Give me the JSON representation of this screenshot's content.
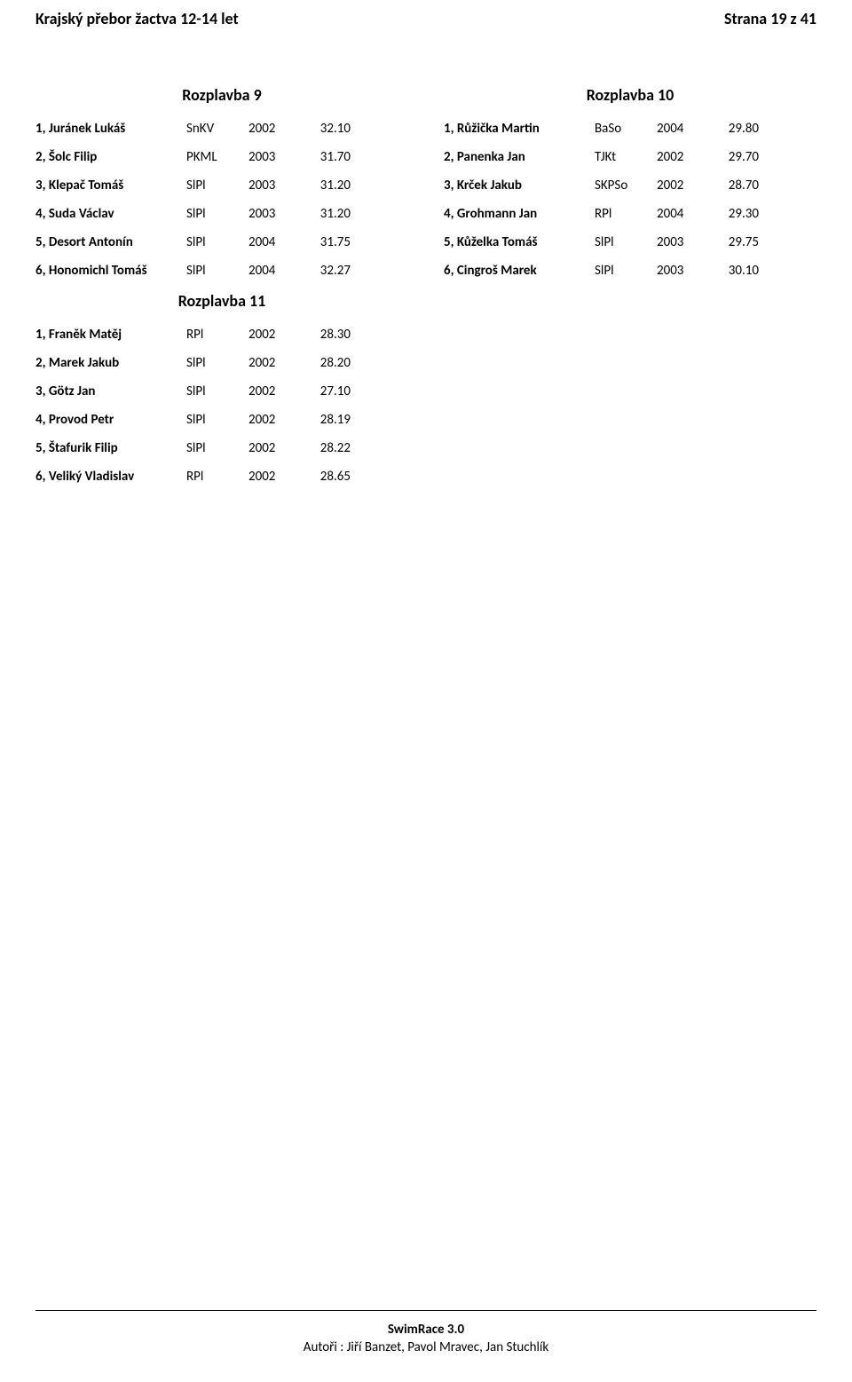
{
  "header": {
    "left": "Krajský přebor žactva 12-14 let",
    "right": "Strana 19 z 41"
  },
  "left_heats": [
    {
      "title": "Rozplavba 9",
      "rows": [
        {
          "name": "1, Juránek Lukáš",
          "club": "SnKV",
          "year": "2002",
          "time": "32.10"
        },
        {
          "name": "2, Šolc Filip",
          "club": "PKML",
          "year": "2003",
          "time": "31.70"
        },
        {
          "name": "3, Klepač Tomáš",
          "club": "SlPl",
          "year": "2003",
          "time": "31.20"
        },
        {
          "name": "4, Suda Václav",
          "club": "SlPl",
          "year": "2003",
          "time": "31.20"
        },
        {
          "name": "5, Desort Antonín",
          "club": "SlPl",
          "year": "2004",
          "time": "31.75"
        },
        {
          "name": "6, Honomichl Tomáš",
          "club": "SlPl",
          "year": "2004",
          "time": "32.27"
        }
      ]
    },
    {
      "title": "Rozplavba 11",
      "rows": [
        {
          "name": "1, Franěk Matěj",
          "club": "RPl",
          "year": "2002",
          "time": "28.30"
        },
        {
          "name": "2, Marek Jakub",
          "club": "SlPl",
          "year": "2002",
          "time": "28.20"
        },
        {
          "name": "3, Götz Jan",
          "club": "SlPl",
          "year": "2002",
          "time": "27.10"
        },
        {
          "name": "4, Provod Petr",
          "club": "SlPl",
          "year": "2002",
          "time": "28.19"
        },
        {
          "name": "5, Štafurik Filip",
          "club": "SlPl",
          "year": "2002",
          "time": "28.22"
        },
        {
          "name": "6, Veliký Vladislav",
          "club": "RPl",
          "year": "2002",
          "time": "28.65"
        }
      ]
    }
  ],
  "right_heats": [
    {
      "title": "Rozplavba 10",
      "rows": [
        {
          "name": "1, Růžička Martin",
          "club": "BaSo",
          "year": "2004",
          "time": "29.80"
        },
        {
          "name": "2, Panenka Jan",
          "club": "TJKt",
          "year": "2002",
          "time": "29.70"
        },
        {
          "name": "3, Krček Jakub",
          "club": "SKPSo",
          "year": "2002",
          "time": "28.70"
        },
        {
          "name": "4, Grohmann Jan",
          "club": "RPl",
          "year": "2004",
          "time": "29.30"
        },
        {
          "name": "5, Kůželka Tomáš",
          "club": "SlPl",
          "year": "2003",
          "time": "29.75"
        },
        {
          "name": "6, Cingroš Marek",
          "club": "SlPl",
          "year": "2003",
          "time": "30.10"
        }
      ]
    }
  ],
  "footer": {
    "title": "SwimRace 3.0",
    "authors": "Autoři : Jiří Banzet, Pavol Mravec, Jan Stuchlík"
  }
}
